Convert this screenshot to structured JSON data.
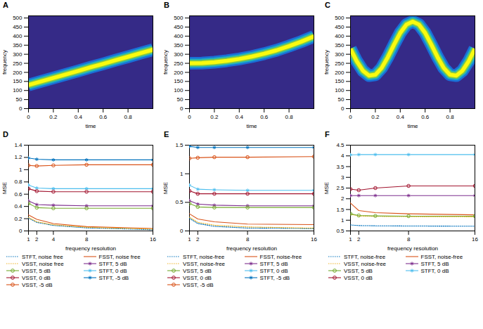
{
  "chart_data": [
    {
      "type": "line",
      "panel_label": "A",
      "xlabel": "time",
      "ylabel": "frequency",
      "color": "#f9fb0e",
      "x": [
        0,
        0.1,
        0.2,
        0.3,
        0.4,
        0.5,
        0.6,
        0.7,
        0.8,
        0.9,
        1
      ],
      "values": [
        130,
        150,
        169,
        189,
        208,
        228,
        247,
        267,
        286,
        306,
        325
      ],
      "xlim": [
        0,
        1
      ],
      "ylim": [
        0,
        512
      ],
      "xticks": [
        0,
        0.2,
        0.4,
        0.6,
        0.8
      ],
      "yticks": [
        0,
        50,
        100,
        150,
        200,
        250,
        300,
        350,
        400,
        450,
        500
      ]
    },
    {
      "type": "line",
      "panel_label": "B",
      "xlabel": "time",
      "ylabel": "frequency",
      "color": "#f9fb0e",
      "x": [
        0,
        0.1,
        0.2,
        0.3,
        0.4,
        0.5,
        0.6,
        0.7,
        0.8,
        0.9,
        1
      ],
      "values": [
        250,
        251,
        256,
        264,
        274,
        287,
        303,
        322,
        345,
        370,
        398
      ],
      "xlim": [
        0,
        1
      ],
      "ylim": [
        0,
        512
      ],
      "xticks": [
        0,
        0.2,
        0.4,
        0.6,
        0.8
      ],
      "yticks": [
        0,
        50,
        100,
        150,
        200,
        250,
        300,
        350,
        400,
        450,
        500
      ]
    },
    {
      "type": "line",
      "panel_label": "C",
      "xlabel": "time",
      "ylabel": "frequency",
      "color": "#f9fb0e",
      "x": [
        0,
        0.05,
        0.1,
        0.15,
        0.2,
        0.25,
        0.3,
        0.35,
        0.4,
        0.45,
        0.5,
        0.55,
        0.6,
        0.65,
        0.7,
        0.75,
        0.8,
        0.85,
        0.9,
        0.95,
        1
      ],
      "values": [
        330,
        262,
        209,
        182,
        187,
        224,
        284,
        353,
        418,
        464,
        480,
        464,
        418,
        353,
        284,
        224,
        187,
        182,
        209,
        262,
        330
      ],
      "xlim": [
        0,
        1
      ],
      "ylim": [
        0,
        512
      ],
      "xticks": [
        0,
        0.2,
        0.4,
        0.6,
        0.8
      ],
      "yticks": [
        0,
        50,
        100,
        150,
        200,
        250,
        300,
        350,
        400,
        450,
        500
      ]
    },
    {
      "type": "line",
      "panel_label": "D",
      "xlabel": "frequency resolution",
      "ylabel": "MSE",
      "legend": "bottom",
      "x": [
        1,
        2,
        4,
        8,
        16
      ],
      "xlim": [
        1,
        16
      ],
      "xticks": [
        1,
        2,
        4,
        8,
        16
      ],
      "ylim": [
        0,
        1.4
      ],
      "yticks": [
        0,
        0.2,
        0.4,
        0.6,
        0.8,
        1,
        1.2,
        1.4
      ],
      "series": [
        {
          "name": "STFT, noise free",
          "color": "#0072BD",
          "line_style": "dotted",
          "values": [
            0.21,
            0.14,
            0.09,
            0.05,
            0.02
          ]
        },
        {
          "name": "FSST, noise free",
          "color": "#D95319",
          "line_style": "solid",
          "values": [
            0.26,
            0.19,
            0.12,
            0.07,
            0.04
          ]
        },
        {
          "name": "VSST, noise free",
          "color": "#EDB120",
          "line_style": "dotted",
          "values": [
            0.22,
            0.15,
            0.1,
            0.06,
            0.03
          ]
        },
        {
          "name": "STFT, 5 dB",
          "color": "#7E2F8E",
          "line_style": "solid",
          "marker": "asterisk",
          "values": [
            0.49,
            0.43,
            0.42,
            0.41,
            0.41
          ]
        },
        {
          "name": "VSST, 5 dB",
          "color": "#77AC30",
          "line_style": "solid",
          "marker": "circle",
          "values": [
            0.45,
            0.38,
            0.37,
            0.37,
            0.37
          ]
        },
        {
          "name": "STFT, 0 dB",
          "color": "#4DBEEE",
          "line_style": "solid",
          "marker": "asterisk",
          "values": [
            0.75,
            0.7,
            0.69,
            0.69,
            0.69
          ]
        },
        {
          "name": "VSST, 0 dB",
          "color": "#A2142F",
          "line_style": "solid",
          "marker": "circle",
          "values": [
            0.69,
            0.65,
            0.64,
            0.64,
            0.64
          ]
        },
        {
          "name": "STFT, -5 dB",
          "color": "#0072BD",
          "line_style": "solid",
          "marker": "asterisk",
          "values": [
            1.19,
            1.17,
            1.16,
            1.16,
            1.16
          ]
        },
        {
          "name": "VSST, -5 dB",
          "color": "#D95319",
          "line_style": "solid",
          "marker": "circle",
          "values": [
            1.07,
            1.06,
            1.07,
            1.08,
            1.08
          ]
        }
      ]
    },
    {
      "type": "line",
      "panel_label": "E",
      "xlabel": "frequency resolution",
      "ylabel": "MSE",
      "legend": "bottom",
      "x": [
        1,
        2,
        4,
        8,
        16
      ],
      "xlim": [
        1,
        16
      ],
      "xticks": [
        1,
        2,
        8,
        16
      ],
      "ylim": [
        0,
        1.5
      ],
      "yticks": [
        0,
        0.5,
        1,
        1.5
      ],
      "series": [
        {
          "name": "STFT, noise-free",
          "color": "#0072BD",
          "line_style": "dotted",
          "values": [
            0.22,
            0.13,
            0.08,
            0.05,
            0.04
          ]
        },
        {
          "name": "FSST, noise-free",
          "color": "#D95319",
          "line_style": "solid",
          "values": [
            0.3,
            0.21,
            0.16,
            0.12,
            0.11
          ]
        },
        {
          "name": "VSST, noise-free",
          "color": "#EDB120",
          "line_style": "dotted",
          "values": [
            0.24,
            0.15,
            0.1,
            0.07,
            0.05
          ]
        },
        {
          "name": "STFT, 5 dB",
          "color": "#7E2F8E",
          "line_style": "solid",
          "marker": "asterisk",
          "values": [
            0.53,
            0.47,
            0.45,
            0.44,
            0.44
          ]
        },
        {
          "name": "VSST, 5 dB",
          "color": "#77AC30",
          "line_style": "solid",
          "marker": "circle",
          "values": [
            0.48,
            0.42,
            0.41,
            0.41,
            0.41
          ]
        },
        {
          "name": "STFT, 0 dB",
          "color": "#4DBEEE",
          "line_style": "solid",
          "marker": "asterisk",
          "values": [
            0.8,
            0.73,
            0.72,
            0.71,
            0.71
          ]
        },
        {
          "name": "VSST, 0 dB",
          "color": "#A2142F",
          "line_style": "solid",
          "marker": "circle",
          "values": [
            0.7,
            0.65,
            0.65,
            0.65,
            0.65
          ]
        },
        {
          "name": "STFT, -5 dB",
          "color": "#0072BD",
          "line_style": "solid",
          "marker": "asterisk",
          "values": [
            1.48,
            1.46,
            1.46,
            1.46,
            1.46
          ]
        },
        {
          "name": "VSST, -5 dB",
          "color": "#D95319",
          "line_style": "solid",
          "marker": "circle",
          "values": [
            1.27,
            1.28,
            1.29,
            1.29,
            1.3
          ]
        }
      ]
    },
    {
      "type": "line",
      "panel_label": "F",
      "xlabel": "frequency resolution",
      "ylabel": "MSE",
      "legend": "bottom",
      "x": [
        1,
        2,
        4,
        8,
        16
      ],
      "xlim": [
        1,
        16
      ],
      "xticks": [
        1,
        2,
        8,
        16
      ],
      "ylim": [
        0.5,
        4.5
      ],
      "yticks": [
        0.5,
        1,
        1.5,
        2,
        2.5,
        3,
        3.5,
        4,
        4.5
      ],
      "series": [
        {
          "name": "STFT, noise-free",
          "color": "#0072BD",
          "line_style": "dotted",
          "values": [
            0.78,
            0.75,
            0.74,
            0.73,
            0.72
          ]
        },
        {
          "name": "FSST, noise-free",
          "color": "#D95319",
          "line_style": "solid",
          "values": [
            1.8,
            1.45,
            1.35,
            1.3,
            1.25
          ]
        },
        {
          "name": "VSST, noise-free",
          "color": "#EDB120",
          "line_style": "dotted",
          "values": [
            1.28,
            1.2,
            1.18,
            1.17,
            1.16
          ]
        },
        {
          "name": "STFT, 5 dB",
          "color": "#7E2F8E",
          "line_style": "solid",
          "marker": "asterisk",
          "values": [
            2.15,
            2.15,
            2.15,
            2.15,
            2.15
          ]
        },
        {
          "name": "VSST, 5 dB",
          "color": "#77AC30",
          "line_style": "solid",
          "marker": "circle",
          "values": [
            1.3,
            1.22,
            1.2,
            1.19,
            1.19
          ]
        },
        {
          "name": "STFT, 0 dB",
          "color": "#4DBEEE",
          "line_style": "solid",
          "marker": "asterisk",
          "values": [
            4.05,
            4.06,
            4.06,
            4.06,
            4.06
          ]
        },
        {
          "name": "VSST, 0 dB",
          "color": "#A2142F",
          "line_style": "solid",
          "marker": "circle",
          "values": [
            2.45,
            2.4,
            2.5,
            2.6,
            2.6
          ]
        }
      ]
    }
  ]
}
